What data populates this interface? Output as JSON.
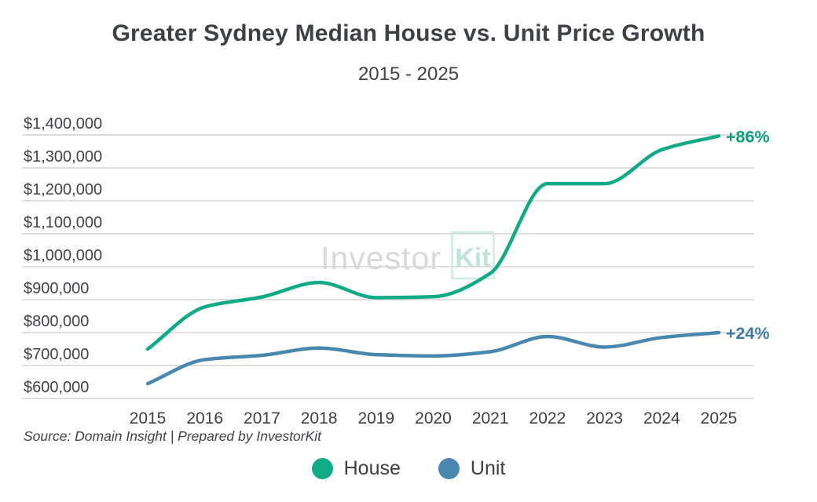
{
  "page": {
    "title": "Greater Sydney Median House vs. Unit Price Growth",
    "subtitle": "2015 - 2025",
    "source": "Source: Domain Insight | Prepared by InvestorKit",
    "watermark": {
      "prefix": "Investor",
      "boxed": "Kit"
    }
  },
  "chart_data": {
    "type": "line",
    "title": "Greater Sydney Median House vs. Unit Price Growth",
    "subtitle": "2015 - 2025",
    "x": [
      2015,
      2016,
      2017,
      2018,
      2019,
      2020,
      2021,
      2022,
      2023,
      2024,
      2025
    ],
    "x_tick_labels": [
      "2015",
      "2016",
      "2017",
      "2018",
      "2019",
      "2020",
      "2021",
      "2022",
      "2023",
      "2024",
      "2025"
    ],
    "series": [
      {
        "name": "House",
        "color": "#10ab86",
        "label_color": "#0b9e79",
        "end_label": "+86%",
        "values": [
          750000,
          878000,
          908000,
          952000,
          906000,
          909000,
          980000,
          1252000,
          1252000,
          1355000,
          1397000
        ]
      },
      {
        "name": "Unit",
        "color": "#4a87ae",
        "label_color": "#3c7ba6",
        "end_label": "+24%",
        "values": [
          645000,
          718000,
          731000,
          753000,
          733000,
          729000,
          742000,
          788000,
          756000,
          785000,
          800000
        ]
      }
    ],
    "ylim": [
      600000,
      1400000
    ],
    "y_ticks": [
      600000,
      700000,
      800000,
      900000,
      1000000,
      1100000,
      1200000,
      1300000,
      1400000
    ],
    "y_tick_labels": [
      "$600,000",
      "$700,000",
      "$800,000",
      "$900,000",
      "$1,000,000",
      "$1,100,000",
      "$1,200,000",
      "$1,300,000",
      "$1,400,000"
    ],
    "grid": true,
    "legend_position": "bottom",
    "colors": {
      "grid_line": "#d9dadb",
      "axis_text": "#3f4347",
      "watermark_gray": "#d9d9d9",
      "watermark_teal": "#bfe5da",
      "watermark_box": "#cfeae2"
    }
  }
}
